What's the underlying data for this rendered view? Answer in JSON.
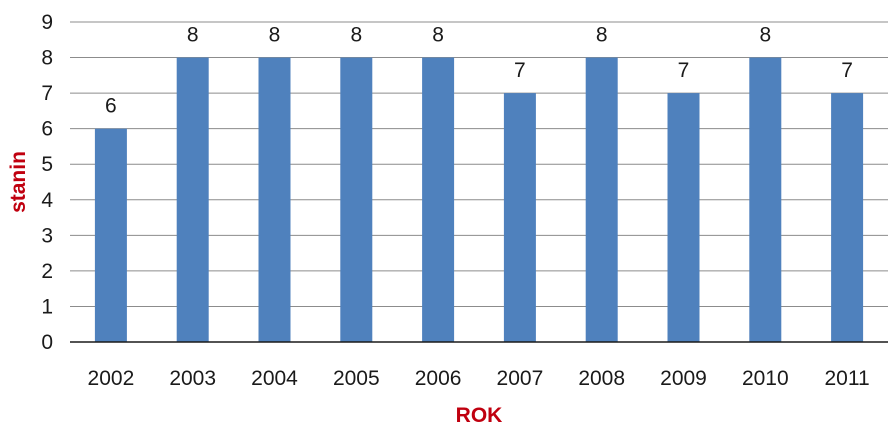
{
  "chart_data": {
    "type": "bar",
    "categories": [
      "2002",
      "2003",
      "2004",
      "2005",
      "2006",
      "2007",
      "2008",
      "2009",
      "2010",
      "2011"
    ],
    "values": [
      6,
      8,
      8,
      8,
      8,
      7,
      8,
      7,
      8,
      7
    ],
    "data_labels": [
      "6",
      "8",
      "8",
      "8",
      "8",
      "7",
      "8",
      "7",
      "8",
      "7"
    ],
    "title": "",
    "xlabel": "ROK",
    "ylabel": "stanin",
    "ylim": [
      0,
      9
    ],
    "yticks": [
      "0",
      "1",
      "2",
      "3",
      "4",
      "5",
      "6",
      "7",
      "8",
      "9"
    ],
    "grid": true,
    "legend": "none",
    "colors": {
      "bar": "#4f81bd",
      "axis_title": "#c0000f",
      "grid": "#8c8c8c",
      "axis": "#1a1a1a"
    }
  }
}
